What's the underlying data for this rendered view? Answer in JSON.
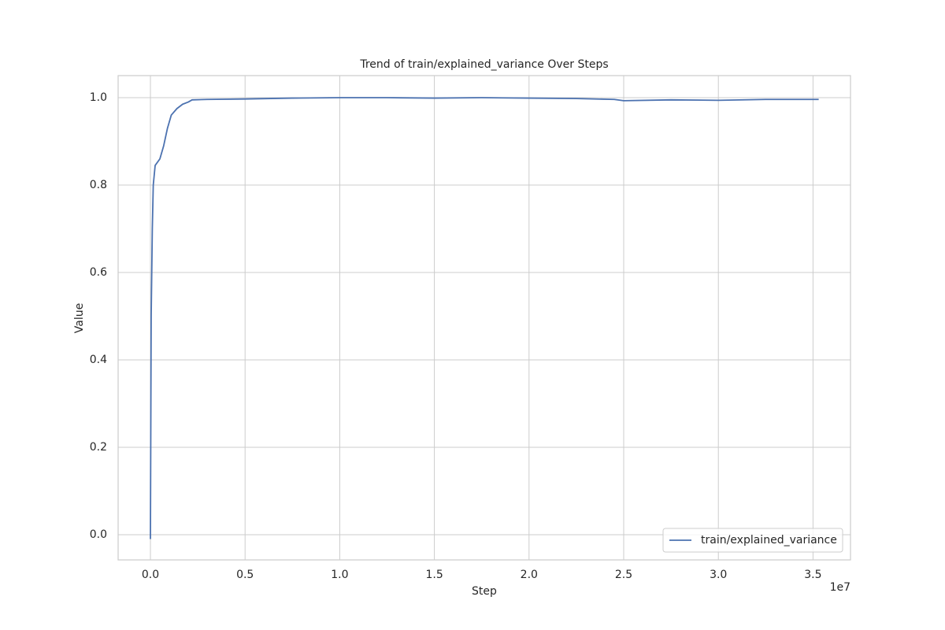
{
  "chart_data": {
    "type": "line",
    "title": "Trend of train/explained_variance Over Steps",
    "x_label": "Step",
    "y_label": "Value",
    "x_offset_label": "1e7",
    "x": [
      0,
      40000,
      100000,
      150000,
      250000,
      500000,
      700000,
      900000,
      1100000,
      1400000,
      1700000,
      2000000,
      2200000,
      3000000,
      5000000,
      7500000,
      10000000,
      12500000,
      15000000,
      17500000,
      20000000,
      22500000,
      24500000,
      25000000,
      27500000,
      30000000,
      32500000,
      35300000
    ],
    "series": [
      {
        "name": "train/explained_variance",
        "color": "#4c72b0",
        "values": [
          -0.01,
          0.5,
          0.7,
          0.8,
          0.845,
          0.86,
          0.89,
          0.93,
          0.96,
          0.975,
          0.985,
          0.99,
          0.995,
          0.996,
          0.997,
          0.999,
          1.0,
          1.0,
          0.999,
          1.0,
          0.999,
          0.998,
          0.996,
          0.993,
          0.995,
          0.994,
          0.996,
          0.996
        ]
      }
    ],
    "xlim": [
      -1706000,
      36980000
    ],
    "xticks": [
      {
        "value": 0,
        "label": "0.0"
      },
      {
        "value": 5000000,
        "label": "0.5"
      },
      {
        "value": 10000000,
        "label": "1.0"
      },
      {
        "value": 15000000,
        "label": "1.5"
      },
      {
        "value": 20000000,
        "label": "2.0"
      },
      {
        "value": 25000000,
        "label": "2.5"
      },
      {
        "value": 30000000,
        "label": "3.0"
      },
      {
        "value": 35000000,
        "label": "3.5"
      }
    ],
    "ylim": [
      -0.0577,
      1.0505
    ],
    "yticks": [
      {
        "value": 0,
        "label": "0.0"
      },
      {
        "value": 0.2,
        "label": "0.2"
      },
      {
        "value": 0.4,
        "label": "0.4"
      },
      {
        "value": 0.6,
        "label": "0.6"
      },
      {
        "value": 0.8,
        "label": "0.8"
      },
      {
        "value": 1,
        "label": "1.0"
      }
    ],
    "grid": true,
    "legend": "lower right"
  }
}
